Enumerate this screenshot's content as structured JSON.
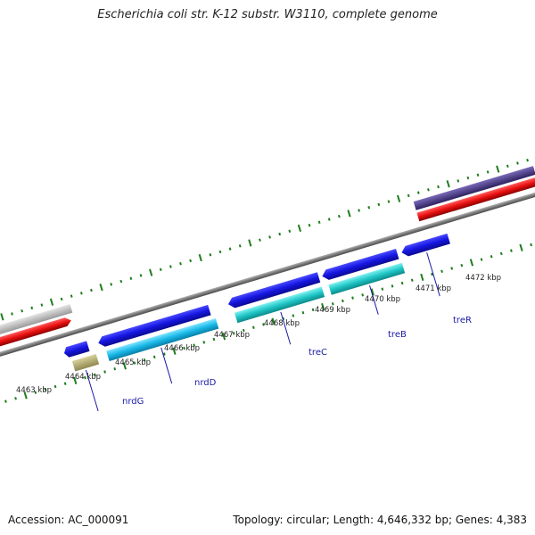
{
  "title": "Escherichia coli str. K-12 substr. W3110, complete genome",
  "footer": {
    "accession": "Accession: AC_000091",
    "summary": "Topology: circular; Length: 4,646,332 bp; Genes: 4,383"
  },
  "colors": {
    "backbone": "#8a8a8a",
    "tick": "#1e7d1e",
    "cds_forward": "#1515e0",
    "cds_light": "#18b8e8",
    "cds_teal": "#1fc6c6",
    "trna": "#b8b070",
    "gene_label": "#1a1aa6",
    "other_gray": "#c0c0c0",
    "other_red": "#e81010",
    "other_purple": "#4b3a8c"
  },
  "scale": {
    "labels": [
      "4463 kbp",
      "4464 kbp",
      "4465 kbp",
      "4466 kbp",
      "4467 kbp",
      "4468 kbp",
      "4469 kbp",
      "4470 kbp",
      "4471 kbp",
      "4472 kbp"
    ],
    "values_kbp": [
      4463,
      4464,
      4465,
      4466,
      4467,
      4468,
      4469,
      4470,
      4471,
      4472
    ]
  },
  "genes": [
    {
      "name": "nrdG"
    },
    {
      "name": "nrdD"
    },
    {
      "name": "treC"
    },
    {
      "name": "treB"
    },
    {
      "name": "treR"
    }
  ]
}
